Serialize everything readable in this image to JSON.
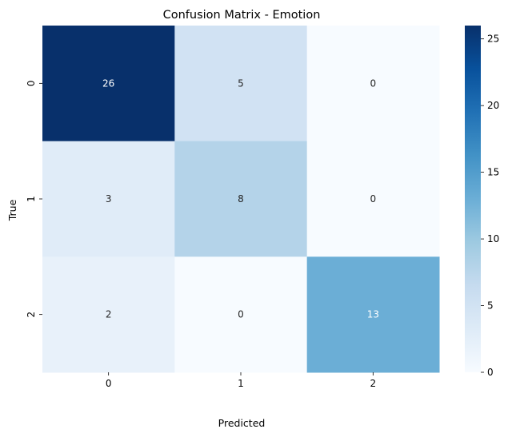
{
  "chart_data": {
    "type": "heatmap",
    "title": "Confusion Matrix - Emotion",
    "xlabel": "Predicted",
    "ylabel": "True",
    "x_categories": [
      "0",
      "1",
      "2"
    ],
    "y_categories": [
      "0",
      "1",
      "2"
    ],
    "values": [
      [
        26,
        5,
        0
      ],
      [
        3,
        8,
        0
      ],
      [
        2,
        0,
        13
      ]
    ],
    "colorbar": {
      "min": 0,
      "max": 26,
      "ticks": [
        "0",
        "5",
        "10",
        "15",
        "20",
        "25"
      ],
      "colormap": "Blues"
    },
    "colors": {
      "low": "#f7fbff",
      "high": "#08306b",
      "text_dark": "#262626",
      "text_light": "#ffffff"
    },
    "grid": false
  }
}
